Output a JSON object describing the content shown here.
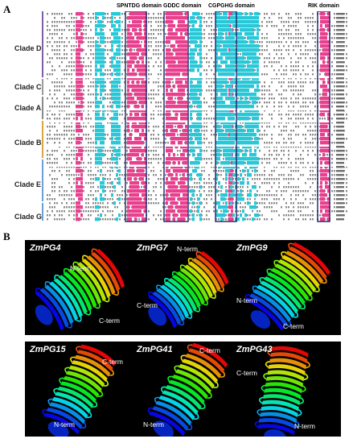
{
  "panel_a": {
    "letter": "A",
    "domains": [
      "SPNTDG domain",
      "GDDC domain",
      "CGPGHG domain",
      "RIK domain"
    ],
    "clades": [
      "Clade D",
      "Clade C",
      "Clade A",
      "Clade B",
      "Clade E",
      "Clade G"
    ],
    "colors": {
      "pink": "#e8408e",
      "cyan": "#27c8d8",
      "navy": "#1a1f66",
      "seq": "#8c8c8c"
    }
  },
  "panel_b": {
    "letter": "B",
    "proteins": [
      {
        "name": "ZmPG4",
        "terms": [
          "N-term",
          "C-term"
        ]
      },
      {
        "name": "ZmPG7",
        "terms": [
          "N-term",
          "C-term"
        ]
      },
      {
        "name": "ZmPG9",
        "terms": [
          "N-term",
          "C-term"
        ]
      },
      {
        "name": "ZmPG15",
        "terms": [
          "C-term",
          "N-term"
        ]
      },
      {
        "name": "ZmPG41",
        "terms": [
          "C-term",
          "N-term"
        ]
      },
      {
        "name": "ZmPG43",
        "terms": [
          "C-term",
          "N-term"
        ]
      }
    ]
  }
}
